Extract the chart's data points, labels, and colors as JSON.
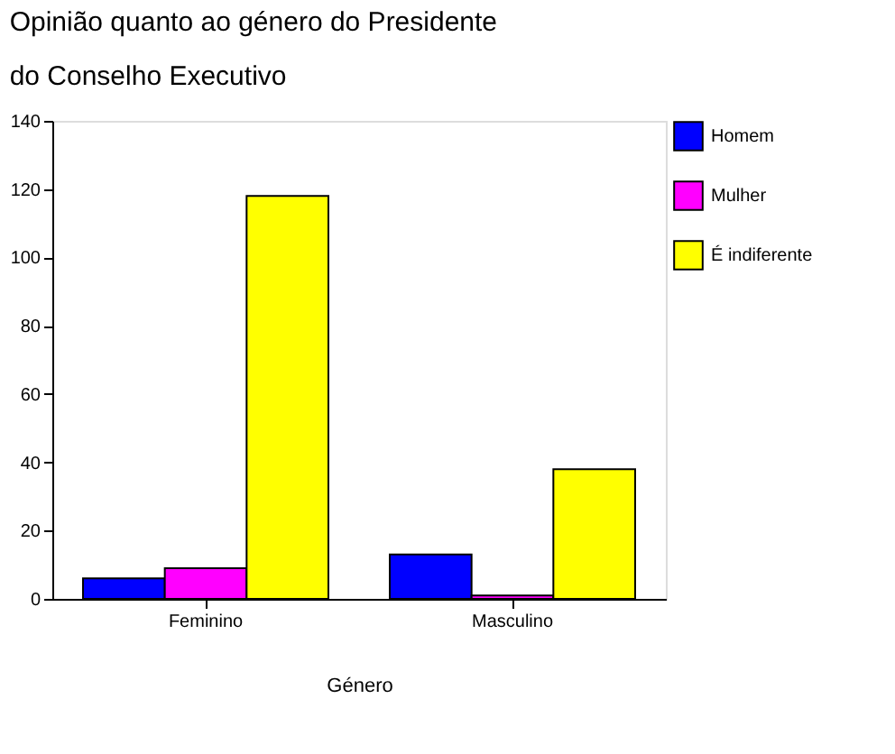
{
  "chart_data": {
    "type": "bar",
    "title": [
      "Opinião quanto ao género do Presidente",
      "do Conselho Executivo"
    ],
    "xlabel": "Género",
    "categories": [
      "Feminino",
      "Masculino"
    ],
    "series": [
      {
        "name": "Homem",
        "color": "#0000ff",
        "values": [
          6,
          13
        ]
      },
      {
        "name": "Mulher",
        "color": "#ff00ff",
        "values": [
          9,
          1
        ]
      },
      {
        "name": "É indiferente",
        "color": "#ffff00",
        "values": [
          118,
          38
        ]
      }
    ],
    "ylim": [
      0,
      140
    ],
    "yticks": [
      0,
      20,
      40,
      60,
      80,
      100,
      120,
      140
    ],
    "grid": false,
    "legend": "right"
  }
}
